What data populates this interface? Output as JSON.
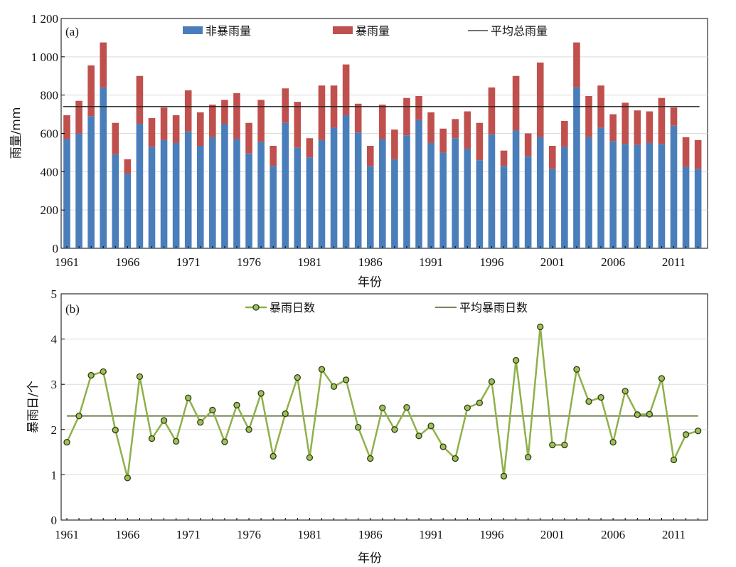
{
  "chart_data": [
    {
      "type": "bar",
      "stacked": true,
      "panel_label": "(a)",
      "xlabel": "年份",
      "ylabel": "雨量/mm",
      "ylim": [
        0,
        1200
      ],
      "yticks": [
        0,
        200,
        400,
        600,
        800,
        1000,
        1200
      ],
      "ytick_labels": [
        "0",
        "200",
        "400",
        "600",
        "800",
        "1 000",
        "1 200"
      ],
      "xtick_labels": [
        "1961",
        "1966",
        "1971",
        "1976",
        "1981",
        "1986",
        "1991",
        "1996",
        "2001",
        "2006",
        "2011"
      ],
      "grid": true,
      "legend_position": "top",
      "x": [
        1961,
        1962,
        1963,
        1964,
        1965,
        1966,
        1967,
        1968,
        1969,
        1970,
        1971,
        1972,
        1973,
        1974,
        1975,
        1976,
        1977,
        1978,
        1979,
        1980,
        1981,
        1982,
        1983,
        1984,
        1985,
        1986,
        1987,
        1988,
        1989,
        1990,
        1991,
        1992,
        1993,
        1994,
        1995,
        1996,
        1997,
        1998,
        1999,
        2000,
        2001,
        2002,
        2003,
        2004,
        2005,
        2006,
        2007,
        2008,
        2009,
        2010,
        2011,
        2012,
        2013
      ],
      "series": [
        {
          "name": "非暴雨量",
          "color": "#4a7ebb",
          "values": [
            570,
            600,
            690,
            840,
            490,
            390,
            650,
            530,
            565,
            550,
            610,
            535,
            580,
            650,
            570,
            495,
            555,
            430,
            655,
            525,
            475,
            565,
            630,
            695,
            605,
            430,
            570,
            465,
            590,
            670,
            550,
            500,
            575,
            520,
            460,
            595,
            430,
            615,
            480,
            580,
            415,
            530,
            840,
            580,
            630,
            560,
            545,
            540,
            550,
            545,
            640,
            425,
            415
          ]
        },
        {
          "name": "暴雨量",
          "color": "#c0504d",
          "values": [
            125,
            170,
            265,
            235,
            165,
            75,
            250,
            150,
            170,
            145,
            215,
            175,
            170,
            125,
            240,
            160,
            220,
            105,
            180,
            240,
            100,
            285,
            220,
            265,
            150,
            105,
            180,
            155,
            195,
            125,
            160,
            125,
            100,
            195,
            195,
            245,
            80,
            285,
            120,
            390,
            120,
            135,
            235,
            215,
            220,
            140,
            215,
            180,
            165,
            240,
            95,
            155,
            150
          ]
        }
      ],
      "lines": [
        {
          "name": "平均总雨量",
          "color": "#1f1f1f",
          "value": 740
        }
      ]
    },
    {
      "type": "line",
      "panel_label": "(b)",
      "xlabel": "年份",
      "ylabel": "暴雨日/个",
      "ylim": [
        0,
        5
      ],
      "yticks": [
        0,
        1,
        2,
        3,
        4,
        5
      ],
      "ytick_labels": [
        "0",
        "1",
        "2",
        "3",
        "4",
        "5"
      ],
      "xtick_labels": [
        "1961",
        "1966",
        "1971",
        "1976",
        "1981",
        "1986",
        "1991",
        "1996",
        "2001",
        "2006",
        "2011"
      ],
      "grid": true,
      "legend_position": "top",
      "x": [
        1961,
        1962,
        1963,
        1964,
        1965,
        1966,
        1967,
        1968,
        1969,
        1970,
        1971,
        1972,
        1973,
        1974,
        1975,
        1976,
        1977,
        1978,
        1979,
        1980,
        1981,
        1982,
        1983,
        1984,
        1985,
        1986,
        1987,
        1988,
        1989,
        1990,
        1991,
        1992,
        1993,
        1994,
        1995,
        1996,
        1997,
        1998,
        1999,
        2000,
        2001,
        2002,
        2003,
        2004,
        2005,
        2006,
        2007,
        2008,
        2009,
        2010,
        2011,
        2012,
        2013
      ],
      "series": [
        {
          "name": "暴雨日数",
          "color": "#8fb04a",
          "marker_color": "#556b2f",
          "values": [
            1.72,
            2.3,
            3.2,
            3.28,
            1.99,
            0.93,
            3.17,
            1.8,
            2.2,
            1.74,
            2.7,
            2.16,
            2.43,
            1.73,
            2.54,
            2.0,
            2.8,
            1.41,
            2.35,
            3.15,
            1.38,
            3.33,
            2.95,
            3.1,
            2.05,
            1.36,
            2.48,
            2.0,
            2.49,
            1.86,
            2.08,
            1.62,
            1.36,
            2.48,
            2.59,
            3.06,
            0.97,
            3.53,
            1.39,
            4.27,
            1.66,
            1.66,
            3.33,
            2.62,
            2.71,
            1.72,
            2.85,
            2.33,
            2.34,
            3.13,
            1.33,
            1.89,
            1.97
          ]
        }
      ],
      "lines": [
        {
          "name": "平均暴雨日数",
          "color": "#4a5e1e",
          "value": 2.3
        }
      ]
    }
  ]
}
